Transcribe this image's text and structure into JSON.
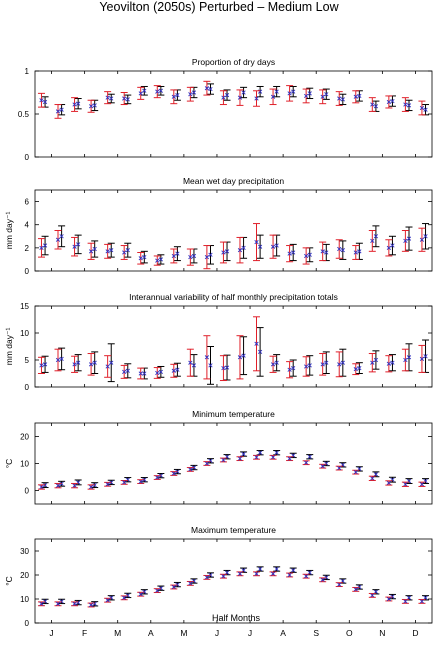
{
  "figure": {
    "title": "Yeovilton (2050s) Perturbed – Medium Low",
    "xlabel": "Half Months",
    "month_labels": [
      "J",
      "F",
      "M",
      "A",
      "M",
      "J",
      "J",
      "A",
      "S",
      "O",
      "N",
      "D"
    ]
  },
  "colors": {
    "series_a": "#000000",
    "series_b": "#e0202a",
    "marker": "#3030c0"
  },
  "chart_data": [
    {
      "type": "errorbar",
      "title": "Proportion of dry days",
      "ylabel": "",
      "ylim": [
        0,
        1
      ],
      "yticks": [
        0,
        0.5,
        1
      ],
      "ytick_labels": [
        "0",
        "0.5",
        "1"
      ],
      "series": [
        {
          "values": [
            0.64,
            0.55,
            0.62,
            0.6,
            0.68,
            0.67,
            0.77,
            0.77,
            0.72,
            0.75,
            0.79,
            0.72,
            0.75,
            0.76,
            0.76,
            0.76,
            0.74,
            0.73,
            0.67,
            0.71,
            0.59,
            0.65,
            0.6,
            0.55
          ],
          "err": [
            0.06,
            0.06,
            0.06,
            0.06,
            0.05,
            0.05,
            0.05,
            0.05,
            0.06,
            0.06,
            0.06,
            0.06,
            0.06,
            0.06,
            0.06,
            0.06,
            0.06,
            0.06,
            0.06,
            0.06,
            0.06,
            0.06,
            0.06,
            0.06
          ]
        },
        {
          "values": [
            0.66,
            0.53,
            0.61,
            0.59,
            0.69,
            0.68,
            0.74,
            0.76,
            0.7,
            0.73,
            0.8,
            0.69,
            0.69,
            0.68,
            0.7,
            0.74,
            0.71,
            0.7,
            0.68,
            0.7,
            0.61,
            0.64,
            0.61,
            0.57
          ],
          "err": [
            0.08,
            0.08,
            0.08,
            0.07,
            0.07,
            0.07,
            0.07,
            0.07,
            0.08,
            0.08,
            0.08,
            0.08,
            0.09,
            0.09,
            0.09,
            0.09,
            0.08,
            0.08,
            0.08,
            0.07,
            0.08,
            0.07,
            0.08,
            0.08
          ]
        }
      ]
    },
    {
      "type": "errorbar",
      "title": "Mean wet day precipitation",
      "ylabel": "mm day⁻¹",
      "ylim": [
        0,
        7
      ],
      "yticks": [
        0,
        2,
        4,
        6
      ],
      "ytick_labels": [
        "0",
        "2",
        "4",
        "6"
      ],
      "series": [
        {
          "values": [
            2.2,
            3.0,
            2.3,
            1.9,
            1.8,
            1.8,
            1.2,
            1.0,
            1.5,
            1.3,
            1.4,
            1.7,
            2.0,
            2.1,
            2.2,
            1.6,
            1.4,
            1.6,
            1.8,
            1.7,
            3.0,
            2.2,
            2.8,
            3.0
          ],
          "err": [
            0.8,
            0.9,
            0.8,
            0.7,
            0.6,
            0.6,
            0.5,
            0.4,
            0.6,
            0.6,
            0.8,
            0.8,
            0.9,
            1.0,
            0.9,
            0.7,
            0.6,
            0.7,
            0.8,
            0.7,
            0.9,
            0.8,
            1.0,
            1.1
          ]
        },
        {
          "values": [
            2.0,
            2.7,
            2.1,
            1.7,
            1.7,
            1.6,
            1.1,
            0.9,
            1.3,
            1.2,
            1.2,
            1.6,
            1.8,
            2.5,
            2.1,
            1.5,
            1.3,
            1.7,
            1.9,
            1.6,
            2.6,
            2.0,
            2.6,
            2.7
          ],
          "err": [
            0.8,
            0.8,
            0.8,
            0.7,
            0.6,
            0.6,
            0.5,
            0.4,
            0.6,
            0.7,
            1.0,
            0.9,
            1.1,
            1.6,
            1.0,
            0.7,
            0.7,
            0.8,
            0.8,
            0.6,
            0.9,
            0.7,
            0.9,
            1.0
          ]
        }
      ]
    },
    {
      "type": "errorbar",
      "title": "Interannual variability of half monthly precipitation totals",
      "ylabel": "mm day⁻¹",
      "ylim": [
        0,
        15
      ],
      "yticks": [
        0,
        5,
        10,
        15
      ],
      "ytick_labels": [
        "0",
        "5",
        "10",
        "15"
      ],
      "series": [
        {
          "values": [
            4.2,
            5.2,
            4.5,
            4.5,
            4.5,
            3.0,
            2.5,
            2.8,
            3.2,
            4.0,
            4.0,
            3.6,
            5.8,
            6.5,
            4.5,
            3.5,
            4.0,
            4.5,
            4.5,
            3.5,
            5.0,
            4.5,
            5.5,
            5.7
          ],
          "err": [
            1.5,
            2.0,
            1.5,
            2.0,
            3.5,
            1.3,
            1.0,
            1.0,
            1.2,
            2.0,
            3.5,
            2.3,
            3.5,
            4.5,
            1.5,
            1.5,
            1.8,
            2.0,
            2.5,
            1.0,
            1.7,
            1.5,
            2.5,
            3.0
          ]
        },
        {
          "values": [
            4.0,
            5.0,
            4.2,
            4.2,
            3.8,
            2.8,
            2.5,
            2.6,
            3.0,
            4.5,
            5.5,
            3.5,
            5.5,
            8.0,
            4.2,
            3.2,
            3.8,
            4.2,
            4.2,
            3.3,
            4.5,
            4.3,
            5.0,
            5.2
          ],
          "err": [
            1.5,
            2.0,
            1.5,
            2.0,
            2.0,
            1.2,
            1.0,
            1.0,
            1.2,
            2.5,
            4.0,
            2.3,
            4.0,
            5.0,
            1.5,
            1.5,
            1.8,
            2.0,
            2.3,
            1.0,
            1.7,
            1.5,
            2.0,
            2.5
          ]
        }
      ]
    },
    {
      "type": "errorbar",
      "title": "Minimum temperature",
      "ylabel": "°C",
      "ylim": [
        -5,
        25
      ],
      "yticks": [
        0,
        10,
        20
      ],
      "ytick_labels": [
        "0",
        "10",
        "20"
      ],
      "series": [
        {
          "values": [
            2.0,
            2.5,
            3.0,
            2.0,
            3.0,
            4.0,
            4.0,
            5.5,
            7.0,
            8.5,
            11.0,
            12.5,
            13.5,
            14.0,
            14.0,
            13.0,
            12.5,
            10.0,
            9.5,
            8.0,
            6.0,
            4.0,
            3.5,
            3.5
          ],
          "err": [
            0.9,
            0.9,
            0.9,
            0.9,
            0.8,
            0.8,
            0.8,
            0.8,
            0.8,
            0.8,
            0.8,
            0.8,
            0.8,
            0.8,
            0.8,
            0.8,
            0.8,
            0.8,
            0.8,
            0.8,
            0.9,
            0.9,
            0.9,
            0.9
          ]
        },
        {
          "values": [
            1.3,
            1.8,
            1.8,
            1.3,
            2.3,
            3.0,
            3.3,
            4.8,
            6.3,
            7.8,
            10.0,
            11.3,
            11.8,
            12.3,
            12.3,
            11.8,
            10.3,
            9.0,
            8.3,
            6.8,
            4.5,
            2.8,
            2.3,
            2.3
          ],
          "err": [
            0.8,
            0.8,
            0.8,
            0.8,
            0.7,
            0.7,
            0.7,
            0.7,
            0.7,
            0.7,
            0.7,
            0.7,
            0.7,
            0.7,
            0.7,
            0.7,
            0.7,
            0.7,
            0.7,
            0.7,
            0.8,
            0.8,
            0.8,
            0.8
          ]
        }
      ]
    },
    {
      "type": "errorbar",
      "title": "Maximum temperature",
      "ylabel": "°C",
      "ylim": [
        0,
        35
      ],
      "yticks": [
        0,
        10,
        20,
        30
      ],
      "ytick_labels": [
        "0",
        "10",
        "20",
        "30"
      ],
      "series": [
        {
          "values": [
            9.0,
            9.0,
            8.5,
            8.0,
            10.5,
            11.5,
            13.0,
            14.5,
            16.0,
            17.5,
            20.0,
            21.0,
            22.0,
            22.5,
            22.5,
            22.0,
            21.0,
            19.0,
            17.5,
            15.0,
            13.0,
            11.0,
            10.5,
            10.5
          ],
          "err": [
            0.9,
            0.9,
            0.9,
            0.9,
            0.9,
            0.9,
            0.9,
            0.9,
            0.9,
            0.9,
            0.9,
            0.9,
            0.9,
            0.9,
            0.9,
            0.9,
            0.9,
            0.9,
            0.9,
            0.9,
            0.9,
            0.9,
            0.9,
            0.9
          ]
        },
        {
          "values": [
            8.0,
            8.0,
            8.0,
            7.5,
            9.5,
            10.5,
            12.0,
            13.5,
            15.0,
            16.5,
            19.0,
            19.5,
            20.5,
            20.5,
            20.5,
            20.0,
            19.5,
            18.0,
            16.0,
            14.0,
            11.5,
            10.0,
            9.0,
            9.0
          ],
          "err": [
            0.8,
            0.8,
            0.8,
            0.8,
            0.8,
            0.8,
            0.8,
            0.8,
            0.8,
            0.8,
            0.8,
            0.8,
            0.8,
            0.8,
            0.8,
            0.8,
            0.8,
            0.8,
            0.8,
            0.8,
            0.8,
            0.8,
            0.8,
            0.8
          ]
        }
      ]
    }
  ]
}
